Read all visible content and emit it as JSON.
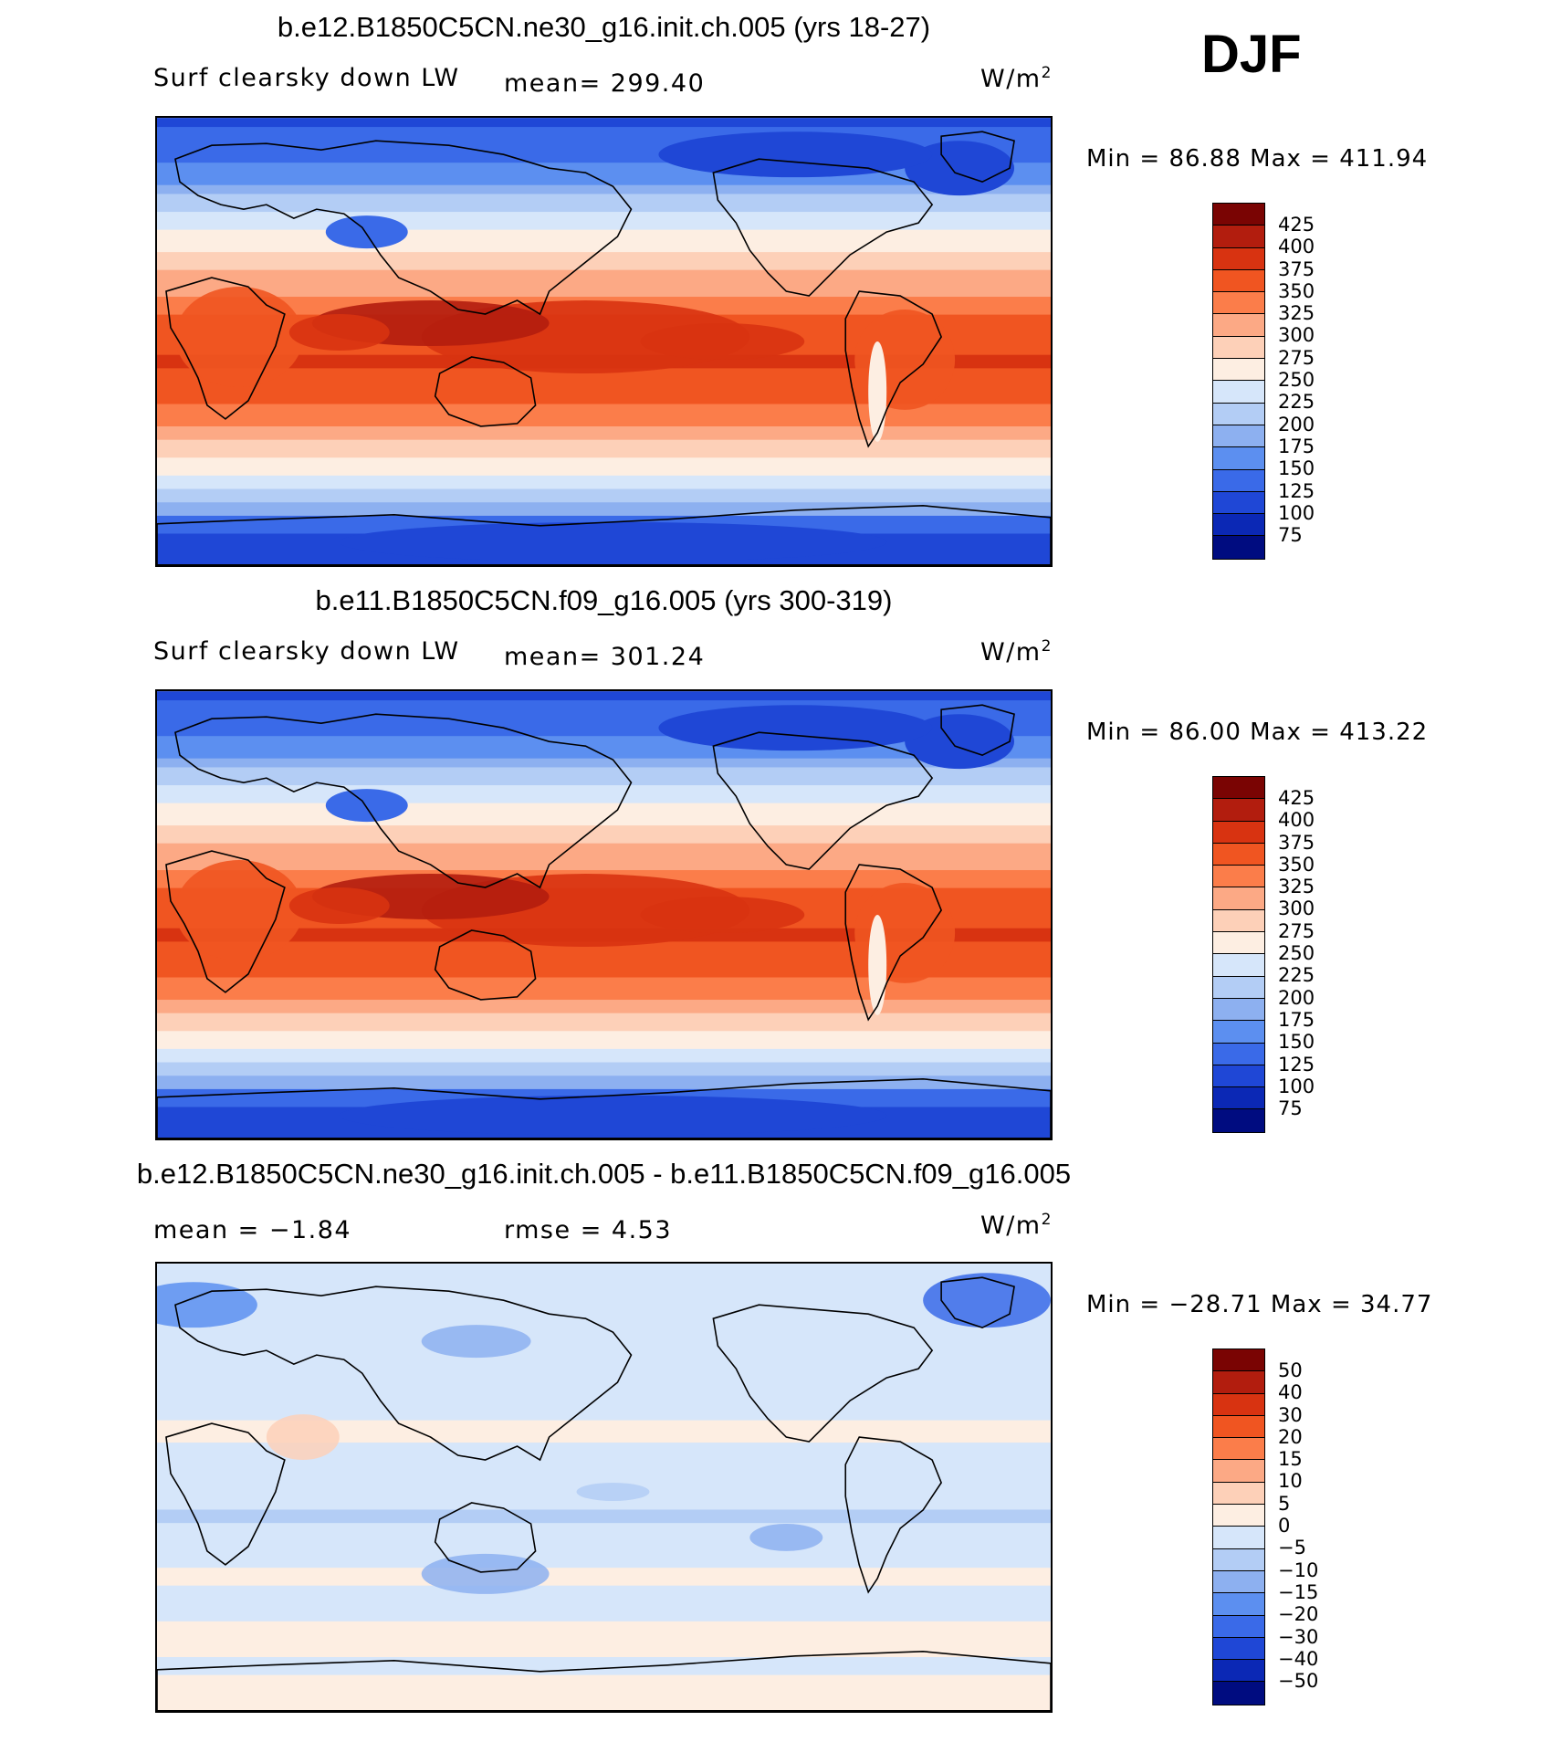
{
  "season": "DJF",
  "panels": [
    {
      "title": "b.e12.B1850C5CN.ne30_g16.init.ch.005 (yrs 18-27)",
      "left_label": "Surf clearsky down LW",
      "center_label": "mean= 299.40",
      "units_base": "W/m",
      "units_exp": "2",
      "minmax": "Min =   86.88 Max = 411.94",
      "colorbar_labels": [
        "425",
        "400",
        "375",
        "350",
        "325",
        "300",
        "275",
        "250",
        "225",
        "200",
        "175",
        "150",
        "125",
        "100",
        "75"
      ]
    },
    {
      "title": "b.e11.B1850C5CN.f09_g16.005 (yrs 300-319)",
      "left_label": "Surf clearsky down LW",
      "center_label": "mean= 301.24",
      "units_base": "W/m",
      "units_exp": "2",
      "minmax": "Min =   86.00 Max = 413.22",
      "colorbar_labels": [
        "425",
        "400",
        "375",
        "350",
        "325",
        "300",
        "275",
        "250",
        "225",
        "200",
        "175",
        "150",
        "125",
        "100",
        "75"
      ]
    },
    {
      "title": "b.e12.B1850C5CN.ne30_g16.init.ch.005 - b.e11.B1850C5CN.f09_g16.005",
      "left_label": "mean =   −1.84",
      "center_label": "rmse =    4.53",
      "units_base": "W/m",
      "units_exp": "2",
      "minmax": "Min = −28.71 Max =   34.77",
      "colorbar_labels": [
        "50",
        "40",
        "30",
        "20",
        "15",
        "10",
        "5",
        "0",
        "−5",
        "−10",
        "−15",
        "−20",
        "−30",
        "−40",
        "−50"
      ]
    }
  ],
  "colors": {
    "scale": [
      "#7a0403",
      "#b21d0e",
      "#d83311",
      "#f05521",
      "#fb7d4a",
      "#fca985",
      "#fdd0b8",
      "#fdeee2",
      "#d6e6fa",
      "#b3cdf5",
      "#8db0f0",
      "#5c8ff0",
      "#3a6ae8",
      "#1f47d6",
      "#0b28b5",
      "#000c80"
    ]
  }
}
